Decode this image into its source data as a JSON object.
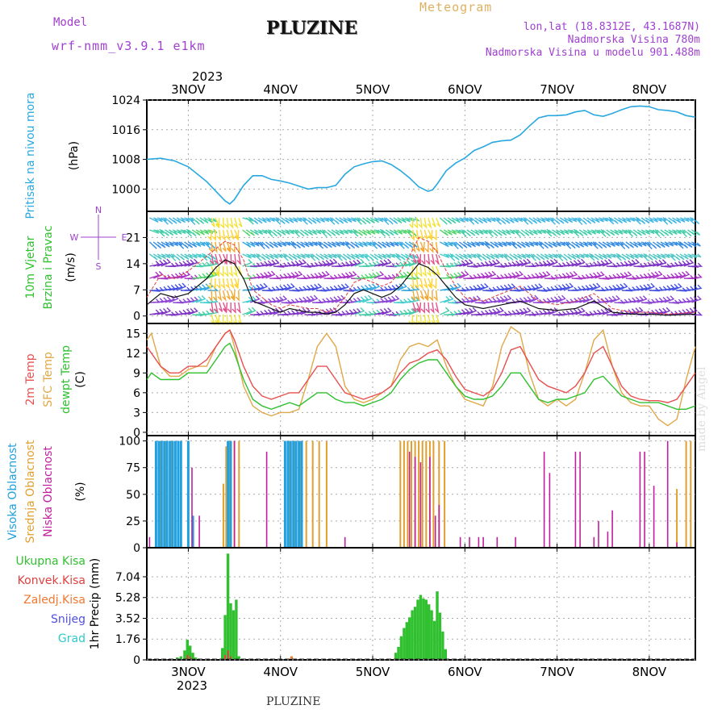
{
  "header": {
    "model_label": "Model",
    "model_name": "wrf-nmm_v3.9.1 e1km",
    "title": "PLUZINE",
    "meteogram_label": "Meteogram",
    "coords": "lon,lat (18.8312E, 43.1687N)",
    "altitude": "Nadmorska Visina 780m",
    "model_altitude": "Nadmorska Visina u modelu 901.488m"
  },
  "footer": {
    "station": "PLUZINE",
    "credit": "made by Angel"
  },
  "colors": {
    "pressure": "#29a8e0",
    "wind_speed": "#111111",
    "gust": "#e04040",
    "temp_2m": "#e85050",
    "temp_sfc": "#e0a848",
    "dewpoint": "#30c030",
    "cloud_high": "#20a0e0",
    "cloud_mid": "#e0a030",
    "cloud_low": "#c020a0",
    "precip_total": "#30c030",
    "precip_conv": "#e04040",
    "precip_frozen": "#f07830",
    "snow": "#5050e0",
    "hail": "#30c8c8"
  },
  "chart_data": [
    {
      "type": "line",
      "panel": "pressure",
      "title": "",
      "xlabel": "",
      "ylabel_lines": [
        "Pritisak na nivou mora",
        "(hPa)"
      ],
      "top_axis": {
        "year": "2023",
        "ticks": [
          "3NOV",
          "4NOV",
          "5NOV",
          "6NOV",
          "7NOV",
          "8NOV"
        ]
      },
      "ylim": [
        994,
        1024
      ],
      "yticks": [
        1000,
        1008,
        1016,
        1024
      ],
      "x_start_day": 2.55,
      "x_end_day": 8.5,
      "x": [
        2.55,
        2.7,
        2.85,
        3.0,
        3.1,
        3.2,
        3.3,
        3.4,
        3.45,
        3.5,
        3.6,
        3.7,
        3.8,
        3.9,
        4.0,
        4.1,
        4.2,
        4.3,
        4.4,
        4.5,
        4.6,
        4.7,
        4.8,
        4.9,
        5.0,
        5.1,
        5.2,
        5.3,
        5.4,
        5.5,
        5.6,
        5.65,
        5.7,
        5.8,
        5.9,
        6.0,
        6.1,
        6.2,
        6.3,
        6.4,
        6.5,
        6.6,
        6.7,
        6.8,
        6.9,
        7.0,
        7.1,
        7.2,
        7.3,
        7.4,
        7.5,
        7.6,
        7.7,
        7.8,
        7.9,
        8.0,
        8.1,
        8.2,
        8.3,
        8.4,
        8.5
      ],
      "series": [
        {
          "values": [
            1008,
            1008.3,
            1007.6,
            1006,
            1004,
            1002,
            999.4,
            996.8,
            996,
            997.2,
            1001,
            1003.6,
            1003.6,
            1002.6,
            1002.2,
            1001.6,
            1000.8,
            1000,
            1000.4,
            1000.4,
            1001,
            1004,
            1006,
            1006.8,
            1007.4,
            1007.6,
            1006.6,
            1005,
            1003,
            1000.6,
            999.4,
            999.8,
            1001.4,
            1005,
            1007,
            1008.4,
            1010.4,
            1011.4,
            1012.6,
            1013,
            1013.2,
            1014.6,
            1017,
            1019.2,
            1019.8,
            1019.8,
            1020,
            1020.8,
            1021.2,
            1020,
            1019.6,
            1020.4,
            1021.4,
            1022.2,
            1022.4,
            1022.2,
            1021.4,
            1021.2,
            1020.8,
            1019.8,
            1019.4
          ]
        }
      ]
    },
    {
      "type": "line",
      "panel": "wind",
      "title": "",
      "ylabel_lines": [
        "10m Vjetar",
        "Brzina i Pravac",
        "(m/s)"
      ],
      "compass": {
        "n": "N",
        "s": "S",
        "e": "E",
        "w": "W"
      },
      "ylim": [
        -2,
        28
      ],
      "yticks": [
        0,
        7,
        14,
        21
      ],
      "x": [
        2.55,
        2.7,
        2.85,
        3.0,
        3.1,
        3.2,
        3.3,
        3.4,
        3.5,
        3.6,
        3.7,
        3.8,
        3.9,
        4.0,
        4.1,
        4.2,
        4.3,
        4.4,
        4.5,
        4.6,
        4.7,
        4.8,
        4.9,
        5.0,
        5.1,
        5.2,
        5.3,
        5.4,
        5.5,
        5.6,
        5.7,
        5.8,
        5.9,
        6.0,
        6.2,
        6.4,
        6.6,
        6.8,
        7.0,
        7.2,
        7.4,
        7.6,
        7.8,
        8.0,
        8.2,
        8.5
      ],
      "series": [
        {
          "name": "speed",
          "values": [
            3,
            6,
            5,
            6,
            8,
            10,
            13,
            15,
            14,
            10,
            4,
            3,
            2,
            1,
            2,
            1.5,
            1,
            1,
            0.5,
            1,
            3,
            6,
            7,
            6,
            5,
            6,
            8,
            11,
            14,
            13,
            11,
            8,
            5,
            3,
            2,
            3,
            4,
            2,
            1.5,
            2,
            4,
            1,
            0.5,
            0.5,
            0.2,
            0.5
          ]
        },
        {
          "name": "gust",
          "values": [
            5,
            11,
            10,
            12,
            14,
            16,
            18,
            20,
            19,
            15,
            7,
            5,
            3,
            2,
            3,
            2.5,
            2,
            2,
            1,
            2,
            5,
            9,
            10,
            9,
            8,
            9,
            12,
            16,
            21,
            20,
            17,
            12,
            8,
            5,
            4,
            6,
            8,
            4,
            3,
            4,
            6,
            2,
            1,
            1,
            0.5,
            1
          ]
        }
      ]
    },
    {
      "type": "line",
      "panel": "temperature",
      "title": "",
      "ylabel_lines": [
        "2m Temp",
        "SFC Temp",
        "dewpt Temp",
        "(C)"
      ],
      "ylim": [
        -0.5,
        16.5
      ],
      "yticks": [
        0,
        3,
        6,
        9,
        12,
        15
      ],
      "x": [
        2.55,
        2.6,
        2.7,
        2.8,
        2.9,
        3.0,
        3.1,
        3.2,
        3.3,
        3.4,
        3.45,
        3.5,
        3.6,
        3.7,
        3.8,
        3.9,
        4.0,
        4.1,
        4.2,
        4.3,
        4.4,
        4.5,
        4.6,
        4.7,
        4.8,
        4.9,
        5.0,
        5.1,
        5.2,
        5.3,
        5.4,
        5.5,
        5.6,
        5.7,
        5.8,
        5.9,
        6.0,
        6.1,
        6.2,
        6.3,
        6.4,
        6.5,
        6.6,
        6.7,
        6.8,
        6.9,
        7.0,
        7.1,
        7.2,
        7.3,
        7.4,
        7.5,
        7.6,
        7.7,
        7.8,
        7.9,
        8.0,
        8.1,
        8.2,
        8.3,
        8.4,
        8.5
      ],
      "series": [
        {
          "name": "2m Temp",
          "values": [
            13,
            12,
            10,
            9,
            9,
            10,
            10,
            11,
            13,
            15,
            15.5,
            14,
            10,
            7,
            5.5,
            5,
            5.5,
            6,
            6,
            8,
            10,
            10,
            8,
            6,
            5.5,
            5,
            5.5,
            6,
            7,
            9,
            10.5,
            11,
            12,
            12.5,
            11,
            8.5,
            6.5,
            6,
            5.5,
            6.5,
            9,
            12.5,
            13,
            10.5,
            8,
            7,
            6.5,
            6,
            7,
            9,
            12,
            13,
            10,
            7,
            5.5,
            5,
            4.8,
            4.8,
            4.5,
            5,
            7,
            9
          ]
        },
        {
          "name": "SFC Temp",
          "values": [
            14,
            15,
            10,
            8.5,
            8.5,
            9.5,
            10,
            10,
            13,
            15,
            15.5,
            13,
            7,
            4,
            3,
            2.5,
            3,
            3,
            3.5,
            8,
            13,
            15,
            13,
            7,
            5,
            4.5,
            5,
            6,
            7,
            11,
            13,
            13.5,
            13,
            14,
            10,
            7,
            5,
            4.5,
            4,
            7,
            13,
            16,
            15,
            9,
            5,
            4,
            5,
            4,
            5,
            9,
            14,
            15.5,
            10,
            6,
            4.5,
            4,
            4,
            2,
            1,
            2,
            8,
            13
          ]
        },
        {
          "name": "dewpt Temp",
          "values": [
            8,
            9,
            8,
            8,
            8,
            9,
            9,
            9,
            11,
            13,
            13.5,
            12,
            8,
            5,
            4,
            3.5,
            4,
            4.5,
            4,
            5,
            6,
            6,
            5,
            4.5,
            4.5,
            4,
            4.5,
            5,
            6,
            8,
            9.5,
            10.5,
            11,
            11,
            9,
            7,
            5.5,
            5,
            5,
            5.5,
            7,
            9,
            9,
            7,
            5,
            4.5,
            5,
            5,
            5.5,
            6,
            8,
            8.5,
            7,
            5.5,
            5,
            4.5,
            4.5,
            4.5,
            4,
            3.5,
            3.5,
            4
          ]
        }
      ]
    },
    {
      "type": "bar",
      "panel": "cloud",
      "title": "",
      "ylabel_lines": [
        "Visoka Oblacnost",
        "Srednja Oblacnost",
        "Niska Oblacnost",
        "(%)"
      ],
      "ylim": [
        0,
        105
      ],
      "yticks": [
        0,
        25,
        50,
        75,
        100
      ],
      "series": [
        {
          "name": "Visoka Oblacnost",
          "x": [
            2.65,
            2.68,
            2.71,
            2.74,
            2.77,
            2.8,
            2.83,
            2.86,
            2.89,
            2.92,
            3.0,
            3.05,
            3.43,
            3.46,
            4.05,
            4.08,
            4.11,
            4.14,
            4.17,
            4.2,
            4.23
          ],
          "values": [
            100,
            100,
            100,
            100,
            100,
            100,
            100,
            100,
            100,
            100,
            100,
            30,
            100,
            100,
            100,
            100,
            100,
            100,
            100,
            100,
            100
          ]
        },
        {
          "name": "Srednja Oblacnost",
          "x": [
            2.7,
            2.76,
            2.82,
            3.38,
            3.41,
            3.44,
            3.5,
            3.55,
            4.1,
            4.16,
            4.22,
            4.28,
            4.35,
            4.42,
            4.5,
            5.3,
            5.34,
            5.38,
            5.42,
            5.46,
            5.5,
            5.54,
            5.58,
            5.62,
            5.66,
            5.72,
            5.78,
            8.3,
            8.4,
            8.45
          ],
          "values": [
            100,
            100,
            100,
            60,
            95,
            100,
            100,
            100,
            100,
            100,
            100,
            100,
            100,
            100,
            100,
            100,
            100,
            100,
            100,
            100,
            100,
            100,
            100,
            100,
            100,
            100,
            100,
            55,
            100,
            100
          ]
        },
        {
          "name": "Niska Oblacnost",
          "x": [
            2.58,
            3.04,
            3.12,
            3.5,
            3.85,
            4.7,
            5.4,
            5.46,
            5.52,
            5.62,
            5.68,
            5.72,
            5.95,
            6.05,
            6.15,
            6.2,
            6.35,
            6.55,
            6.86,
            6.92,
            7.2,
            7.25,
            7.4,
            7.45,
            7.55,
            7.6,
            7.9,
            7.95,
            8.05,
            8.2,
            8.3
          ],
          "values": [
            10,
            75,
            30,
            100,
            90,
            10,
            90,
            85,
            80,
            85,
            30,
            40,
            10,
            10,
            10,
            10,
            10,
            10,
            90,
            70,
            90,
            90,
            10,
            25,
            15,
            35,
            90,
            90,
            58,
            100,
            5
          ]
        }
      ]
    },
    {
      "type": "bar",
      "panel": "precip",
      "title": "",
      "xlabel": "",
      "ylabel_lines": [
        "1hr Precip (mm)"
      ],
      "legend": [
        "Ukupna Kisa",
        "Konvek.Kisa",
        "Zaledj.Kisa",
        "Snijeg",
        "Grad"
      ],
      "ylim": [
        0,
        9.5
      ],
      "yticks": [
        "0",
        "1.76",
        "3.52",
        "5.28",
        "7.04"
      ],
      "bottom_axis": {
        "year": "2023",
        "ticks": [
          "3NOV",
          "4NOV",
          "5NOV",
          "6NOV",
          "7NOV",
          "8NOV"
        ]
      },
      "series": [
        {
          "name": "Ukupna Kisa",
          "x": [
            2.88,
            2.92,
            2.96,
            2.99,
            3.02,
            3.05,
            3.08,
            3.37,
            3.4,
            3.43,
            3.46,
            3.49,
            3.52,
            3.55,
            4.12,
            5.25,
            5.28,
            5.31,
            5.34,
            5.37,
            5.4,
            5.43,
            5.46,
            5.49,
            5.52,
            5.55,
            5.58,
            5.61,
            5.64,
            5.67,
            5.7,
            5.73,
            5.76,
            5.79
          ],
          "values": [
            0.2,
            0.3,
            0.8,
            1.7,
            1.2,
            0.6,
            0.2,
            1,
            3.8,
            9,
            4.8,
            4.2,
            5.1,
            0.3,
            0.2,
            0.6,
            1.1,
            2.0,
            2.7,
            3.2,
            3.6,
            4.2,
            4.5,
            5.1,
            5.5,
            5.2,
            5.1,
            4.7,
            4.2,
            3.3,
            5.8,
            4.0,
            2.4,
            0.9
          ]
        },
        {
          "name": "Konvek.Kisa",
          "x": [
            2.99,
            3.02,
            3.4,
            3.43,
            3.46
          ],
          "values": [
            0.4,
            0.3,
            0.4,
            0.8,
            0.3
          ]
        },
        {
          "name": "Zaledj.Kisa",
          "x": [
            4.12
          ],
          "values": [
            0.3
          ]
        }
      ]
    }
  ]
}
